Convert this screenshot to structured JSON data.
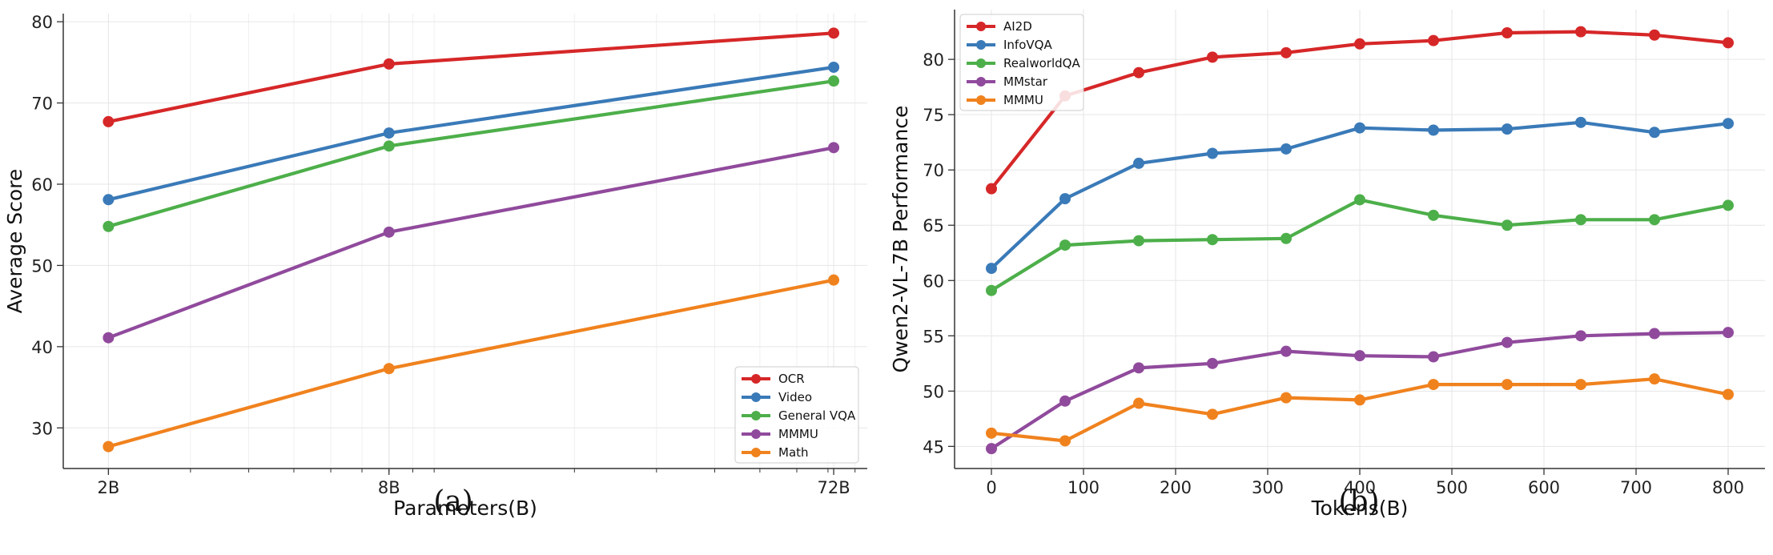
{
  "chart_data": [
    {
      "type": "line",
      "panel_label": "(a)",
      "xlabel": "Parameters(B)",
      "ylabel": "Average Score",
      "xscale": "log",
      "x": [
        2,
        8,
        72
      ],
      "x_tick_labels": [
        "2B",
        "8B",
        "72B"
      ],
      "xlim": [
        1.6,
        85
      ],
      "ylim": [
        25,
        81
      ],
      "y_ticks": [
        30,
        40,
        50,
        60,
        70,
        80
      ],
      "grid": true,
      "legend_position": "bottom-right",
      "series": [
        {
          "name": "OCR",
          "color": "#d62728",
          "values": [
            67.7,
            74.8,
            78.6
          ]
        },
        {
          "name": "Video",
          "color": "#3a7ab8",
          "values": [
            58.1,
            66.3,
            74.4
          ]
        },
        {
          "name": "General VQA",
          "color": "#4daf4a",
          "values": [
            54.8,
            64.7,
            72.7
          ]
        },
        {
          "name": "MMMU",
          "color": "#904a9c",
          "values": [
            41.1,
            54.1,
            64.5
          ]
        },
        {
          "name": "Math",
          "color": "#f0821e",
          "values": [
            27.7,
            37.3,
            48.2
          ]
        }
      ]
    },
    {
      "type": "line",
      "panel_label": "(b)",
      "xlabel": "Tokens(B)",
      "ylabel": "Qwen2-VL-7B Performance",
      "x": [
        0,
        80,
        160,
        240,
        320,
        400,
        480,
        560,
        640,
        720,
        800
      ],
      "x_ticks": [
        0,
        100,
        200,
        300,
        400,
        500,
        600,
        700,
        800
      ],
      "xlim": [
        -40,
        840
      ],
      "ylim": [
        43,
        84.5
      ],
      "y_ticks": [
        45,
        50,
        55,
        60,
        65,
        70,
        75,
        80
      ],
      "grid": true,
      "legend_position": "top-left",
      "series": [
        {
          "name": "AI2D",
          "color": "#d62728",
          "values": [
            68.3,
            76.7,
            78.8,
            80.2,
            80.6,
            81.4,
            81.7,
            82.4,
            82.5,
            82.2,
            81.5
          ]
        },
        {
          "name": "InfoVQA",
          "color": "#3a7ab8",
          "values": [
            61.1,
            67.4,
            70.6,
            71.5,
            71.9,
            73.8,
            73.6,
            73.7,
            74.3,
            73.4,
            74.2
          ]
        },
        {
          "name": "RealworldQA",
          "color": "#4daf4a",
          "values": [
            59.1,
            63.2,
            63.6,
            63.7,
            63.8,
            67.3,
            65.9,
            65.0,
            65.5,
            65.5,
            66.8
          ]
        },
        {
          "name": "MMstar",
          "color": "#904a9c",
          "values": [
            44.8,
            49.1,
            52.1,
            52.5,
            53.6,
            53.2,
            53.1,
            54.4,
            55.0,
            55.2,
            55.3
          ]
        },
        {
          "name": "MMMU",
          "color": "#f0821e",
          "values": [
            46.2,
            45.5,
            48.9,
            47.9,
            49.4,
            49.2,
            50.6,
            50.6,
            50.6,
            51.1,
            49.7
          ]
        }
      ]
    }
  ]
}
